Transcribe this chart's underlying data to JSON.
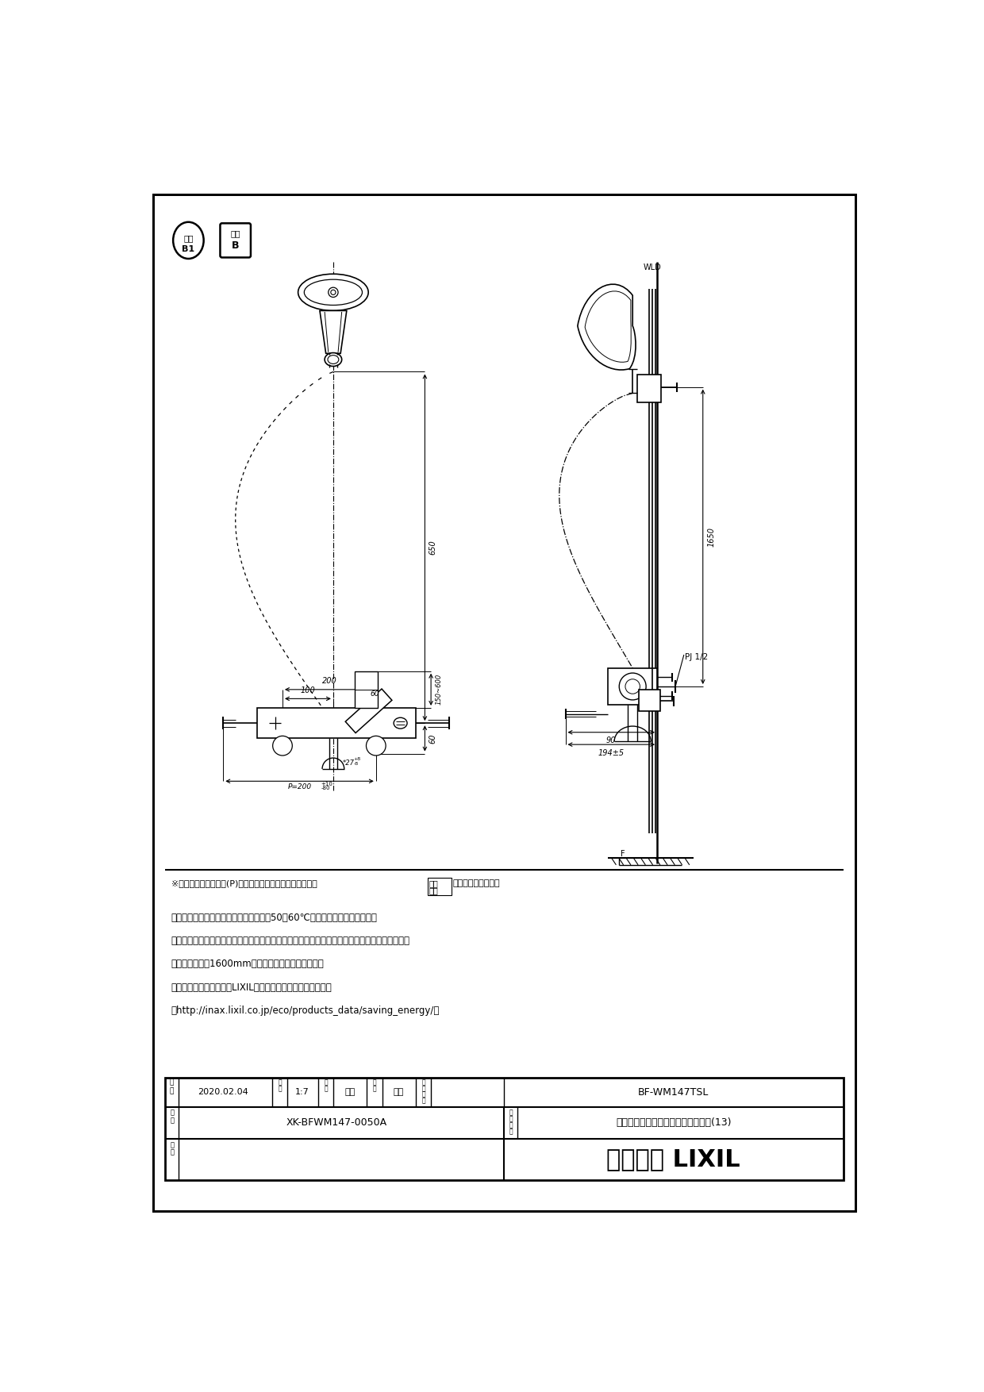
{
  "border_color": "#000000",
  "background_color": "#ffffff",
  "line_color": "#000000",
  "notes": [
    "・適温の湯を出すためには給湯器の温度50～60℃の設定をおすすめします。",
    "・シャワーヘッドは乱暴に扱わないで下さい。メッキがはがれて、ケガをする恐れがあります。",
    "・（ホース長さ1600mm。温度調節ハンドル調整要）",
    "・節湯記号については、LIXILホームページを参照ください。",
    "（http://inax.lixil.co.jp/eco/products_data/saving_energy/）"
  ],
  "note_symbol": "＊印寸法は配管ピッチ(P)が最大～最小の場合を（標準寸法 最大 最小）で示しています。",
  "date_label": "日付",
  "date_value": "2020.02.04",
  "scale_label": "尺度",
  "scale_value": "1:7",
  "draw_label": "製図",
  "draw_value": "金山",
  "check_label": "検図",
  "check_value": "岐崎",
  "part_no_label": "品番",
  "part_no_value": "BF-WM147TSL",
  "fig_no_label": "図番",
  "fig_no_value": "XK-BFWM147-0050A",
  "part_name_label": "品名",
  "part_name_value": "サーモスタット付シャワーバス水栓(13)",
  "remarks_label": "備考",
  "company_name": "株式会社LIXIL"
}
